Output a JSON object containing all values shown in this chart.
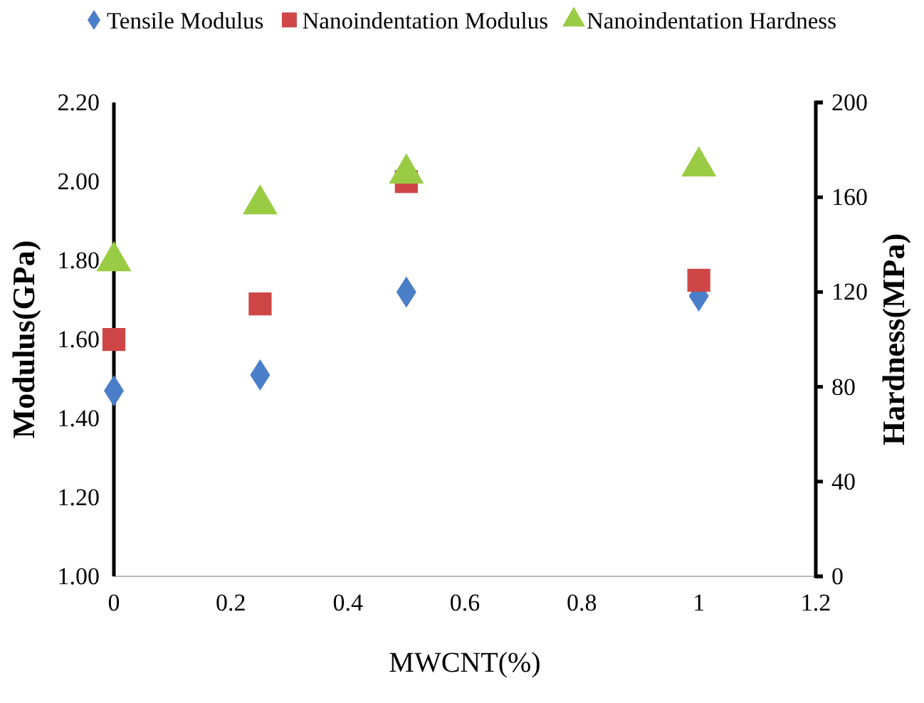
{
  "chart_data": {
    "type": "scatter",
    "xlabel": "MWCNT(%)",
    "ylabel": "Modulus(GPa)",
    "y2label": "Hardness(MPa)",
    "x": [
      0,
      0.25,
      0.5,
      1
    ],
    "series": [
      {
        "name": "Tensile Modulus",
        "color": "#4a7ec8",
        "marker": "diamond",
        "values": [
          1.47,
          1.51,
          1.72,
          1.71
        ]
      },
      {
        "name": "Nanoindentation Modulus",
        "color": "#cf4646",
        "marker": "square",
        "values": [
          1.6,
          1.69,
          2.0,
          1.75
        ]
      },
      {
        "name": "Nanoindentation Hardness",
        "color": "#9acb44",
        "marker": "triangle",
        "axis": "y2",
        "values": [
          133,
          157,
          170,
          173
        ]
      }
    ],
    "xlim": [
      0,
      1.2
    ],
    "xticks": [
      0,
      0.2,
      0.4,
      0.6,
      0.8,
      1,
      1.2
    ],
    "ylim": [
      1.0,
      2.2
    ],
    "yticks": [
      {
        "value": 1.0,
        "label": "1.00"
      },
      {
        "value": 1.2,
        "label": "1.20"
      },
      {
        "value": 1.4,
        "label": "1.40"
      },
      {
        "value": 1.6,
        "label": "1.60"
      },
      {
        "value": 1.8,
        "label": "1.80"
      },
      {
        "value": 2.0,
        "label": "2.00"
      },
      {
        "value": 2.2,
        "label": "2.20"
      }
    ],
    "y2lim": [
      0,
      200
    ],
    "y2ticks": [
      0,
      40,
      80,
      120,
      160,
      200
    ],
    "legend": "top",
    "grid": false
  }
}
